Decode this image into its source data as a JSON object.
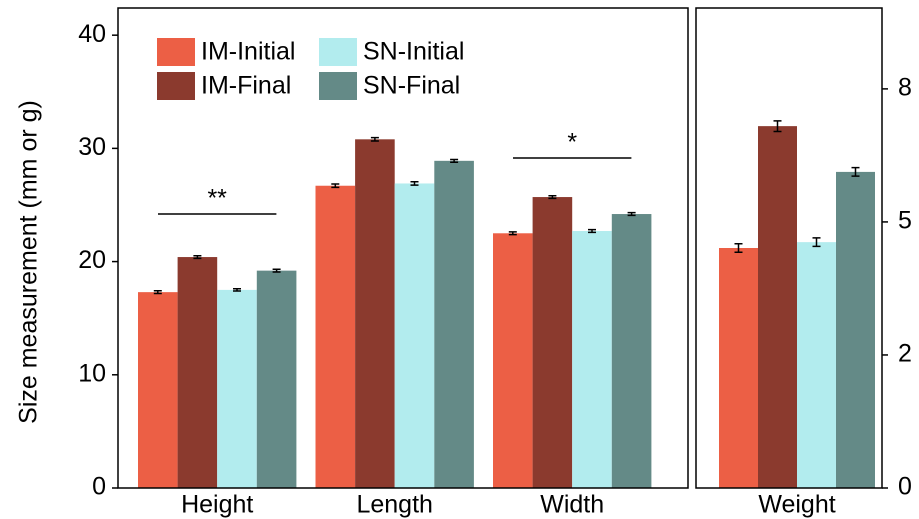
{
  "chart_data": [
    {
      "type": "bar",
      "ylabel": "Size measurement (mm or g)",
      "categories": [
        "Height",
        "Length",
        "Width"
      ],
      "series": [
        {
          "name": "IM-Initial",
          "color": "#ec5f45",
          "values": [
            17.3,
            26.7,
            22.5
          ],
          "errors": [
            0.12,
            0.15,
            0.12
          ]
        },
        {
          "name": "IM-Final",
          "color": "#8b3a2e",
          "values": [
            20.4,
            30.8,
            25.7
          ],
          "errors": [
            0.12,
            0.15,
            0.12
          ]
        },
        {
          "name": "SN-Initial",
          "color": "#b2ecee",
          "values": [
            17.5,
            26.9,
            22.7
          ],
          "errors": [
            0.1,
            0.15,
            0.12
          ]
        },
        {
          "name": "SN-Final",
          "color": "#648a87",
          "values": [
            19.2,
            28.9,
            24.2
          ],
          "errors": [
            0.12,
            0.12,
            0.12
          ]
        }
      ],
      "annotations": [
        "**",
        "*"
      ],
      "ylim": [
        0,
        42.4
      ],
      "yticks": [
        0,
        10,
        20,
        30,
        40
      ]
    },
    {
      "type": "bar",
      "categories": [
        "Weight"
      ],
      "series": [
        {
          "color": "#ec5f45",
          "values": [
            4.51
          ],
          "errors": [
            0.08
          ]
        },
        {
          "color": "#8b3a2e",
          "values": [
            6.8
          ],
          "errors": [
            0.1
          ]
        },
        {
          "color": "#b2ecee",
          "values": [
            4.62
          ],
          "errors": [
            0.08
          ]
        },
        {
          "color": "#648a87",
          "values": [
            5.94
          ],
          "errors": [
            0.08
          ]
        }
      ],
      "ylim": [
        0,
        9.02
      ],
      "yticks": [
        0,
        {
          "value": 2.5,
          "label": "2"
        },
        5,
        {
          "value": 7.5,
          "label": "8"
        }
      ]
    }
  ]
}
